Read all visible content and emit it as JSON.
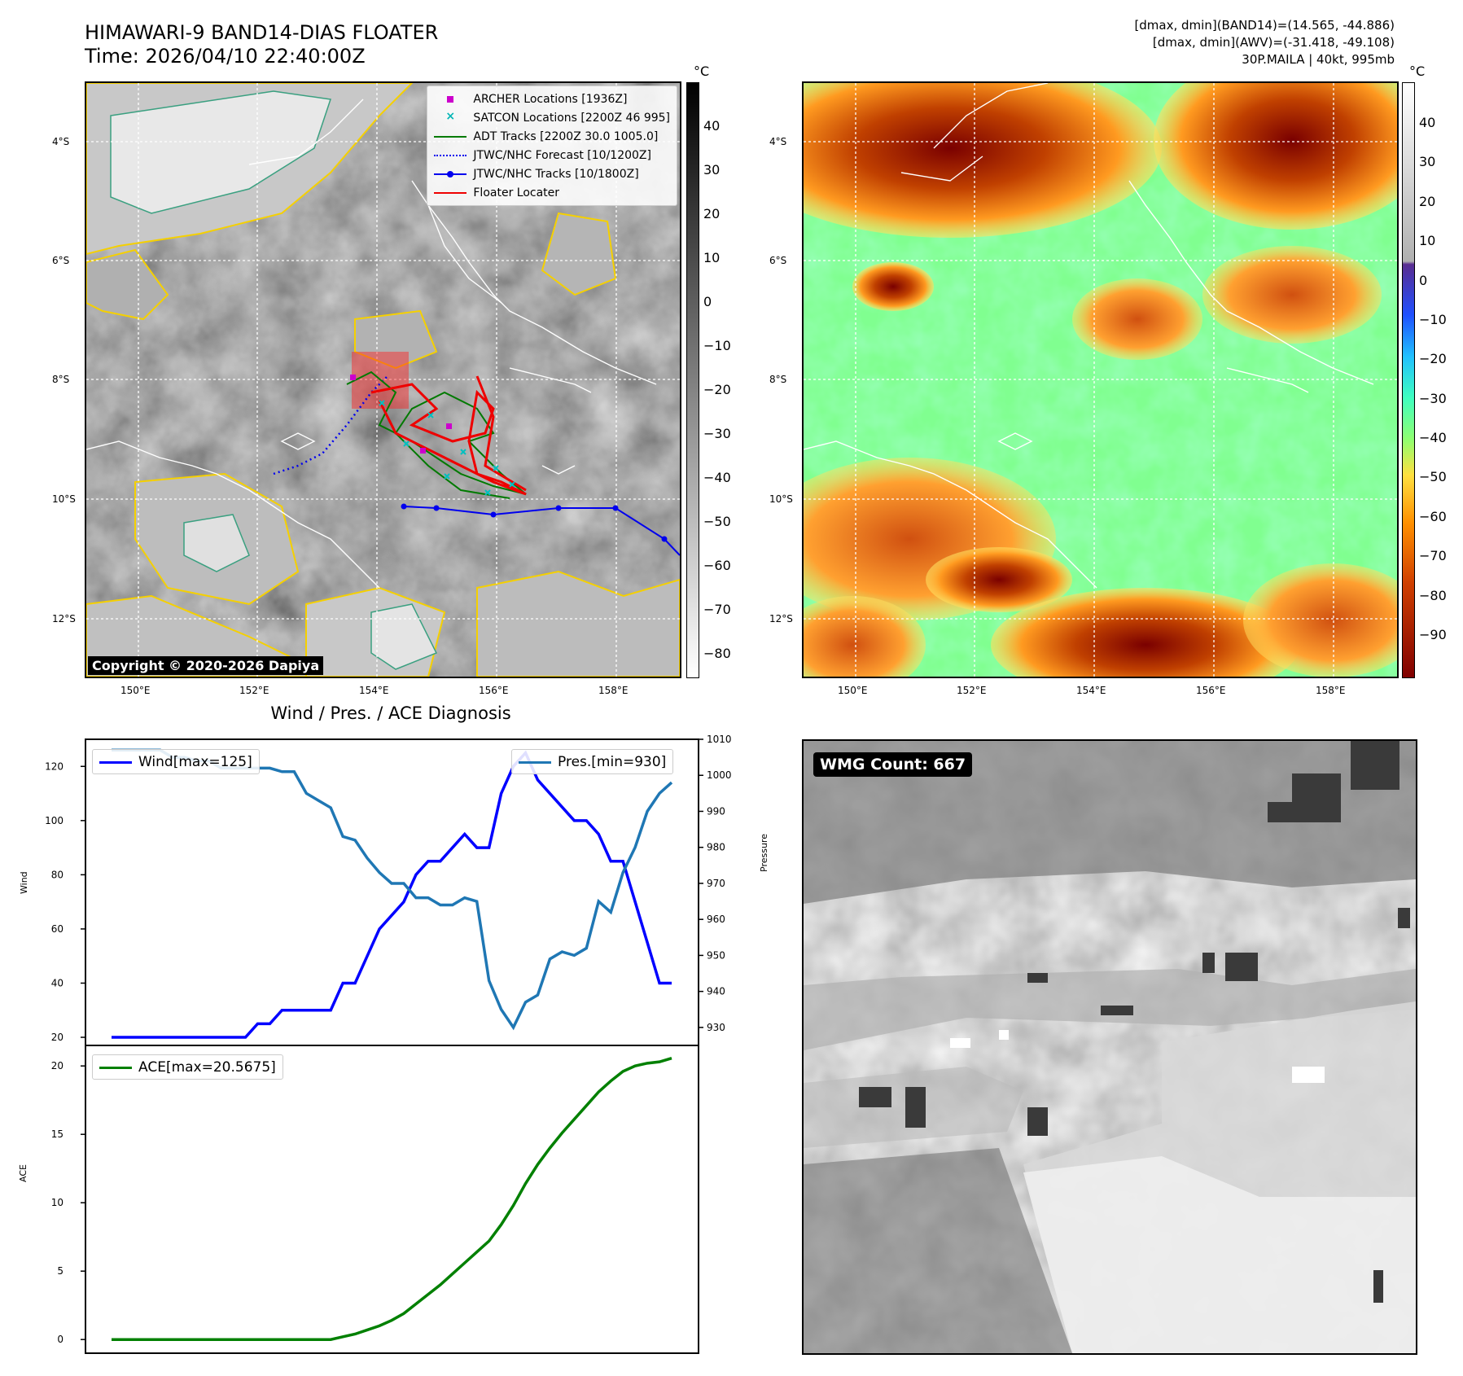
{
  "header": {
    "title_line1": "HIMAWARI-9 BAND14-DIAS FLOATER",
    "title_line2": "Time: 2026/04/10 22:40:00Z",
    "info_line1": "[dmax, dmin](BAND14)=(14.565, -44.886)",
    "info_line2": "[dmax, dmin](AWV)=(-31.418, -49.108)",
    "info_line3": "30P.MAILA | 40kt, 995mb"
  },
  "map_axes": {
    "lon_ticks": [
      "150°E",
      "152°E",
      "154°E",
      "156°E",
      "158°E"
    ],
    "lat_ticks": [
      "4°S",
      "6°S",
      "8°S",
      "10°S",
      "12°S"
    ]
  },
  "ir_colorbar": {
    "unit": "°C",
    "ticks": [
      "40",
      "30",
      "20",
      "10",
      "0",
      "−10",
      "−20",
      "−30",
      "−40",
      "−50",
      "−60",
      "−70",
      "−80"
    ]
  },
  "awv_colorbar": {
    "unit": "°C",
    "ticks": [
      "40",
      "30",
      "20",
      "10",
      "0",
      "−10",
      "−20",
      "−30",
      "−40",
      "−50",
      "−60",
      "−70",
      "−80",
      "−90"
    ]
  },
  "legend": [
    {
      "label": "ARCHER Locations [1936Z]",
      "marker": "square",
      "color": "#cc00cc"
    },
    {
      "label": "SATCON Locations [2200Z 46 995]",
      "marker": "x",
      "color": "#00b5b5"
    },
    {
      "label": "ADT Tracks [2200Z 30.0 1005.0]",
      "marker": "line",
      "color": "#007a00"
    },
    {
      "label": "JTWC/NHC Forecast [10/1200Z]",
      "marker": "dotted",
      "color": "#0000ee"
    },
    {
      "label": "JTWC/NHC Tracks [10/1800Z]",
      "marker": "line-dot",
      "color": "#0000ee"
    },
    {
      "label": "Floater Locater",
      "marker": "line",
      "color": "#ee0000"
    }
  ],
  "copyright": "Copyright © 2020-2026 Dapiya",
  "wmg_label": "WMG Count: 667",
  "colors": {
    "wind": "#0000ff",
    "pressure": "#1f77b4",
    "ace": "#008000"
  },
  "chart_data": [
    {
      "type": "line",
      "title": "Wind / Pres. / ACE Diagnosis",
      "xlabel": "",
      "ylabel": "Wind",
      "ylabel_right": "Pressure",
      "ylim": [
        17,
        130
      ],
      "ylim_right": [
        925,
        1010
      ],
      "yticks": [
        20,
        40,
        60,
        80,
        100,
        120
      ],
      "yticks_right": [
        930,
        940,
        950,
        960,
        970,
        980,
        990,
        1000,
        1010
      ],
      "series": [
        {
          "name": "Wind[max=125]",
          "axis": "left",
          "values": [
            20,
            20,
            20,
            20,
            20,
            20,
            20,
            20,
            20,
            20,
            20,
            20,
            25,
            25,
            30,
            30,
            30,
            30,
            30,
            40,
            40,
            50,
            60,
            65,
            70,
            80,
            85,
            85,
            90,
            95,
            90,
            90,
            110,
            120,
            125,
            115,
            110,
            105,
            100,
            100,
            95,
            85,
            85,
            70,
            55,
            40,
            40
          ]
        },
        {
          "name": "Pres.[min=930]",
          "axis": "right",
          "values": [
            1007,
            1007,
            1007,
            1007,
            1007,
            1005,
            1005,
            1004,
            1004,
            1002,
            1002,
            1002,
            1002,
            1002,
            1001,
            1001,
            995,
            993,
            991,
            983,
            982,
            977,
            973,
            970,
            970,
            966,
            966,
            964,
            964,
            966,
            965,
            943,
            935,
            930,
            937,
            939,
            949,
            951,
            950,
            952,
            965,
            962,
            973,
            980,
            990,
            995,
            998
          ]
        }
      ]
    },
    {
      "type": "line",
      "xlabel": "",
      "ylabel": "ACE",
      "ylim": [
        -1,
        21.5
      ],
      "yticks": [
        0,
        5,
        10,
        15,
        20
      ],
      "series": [
        {
          "name": "ACE[max=20.5675]",
          "values": [
            0,
            0,
            0,
            0,
            0,
            0,
            0,
            0,
            0,
            0,
            0,
            0,
            0,
            0,
            0,
            0,
            0,
            0,
            0,
            0.2,
            0.4,
            0.7,
            1.0,
            1.4,
            1.9,
            2.6,
            3.3,
            4.0,
            4.8,
            5.6,
            6.4,
            7.2,
            8.4,
            9.8,
            11.4,
            12.8,
            14.0,
            15.1,
            16.1,
            17.1,
            18.1,
            18.9,
            19.6,
            20.0,
            20.2,
            20.3,
            20.5675
          ]
        }
      ]
    }
  ]
}
